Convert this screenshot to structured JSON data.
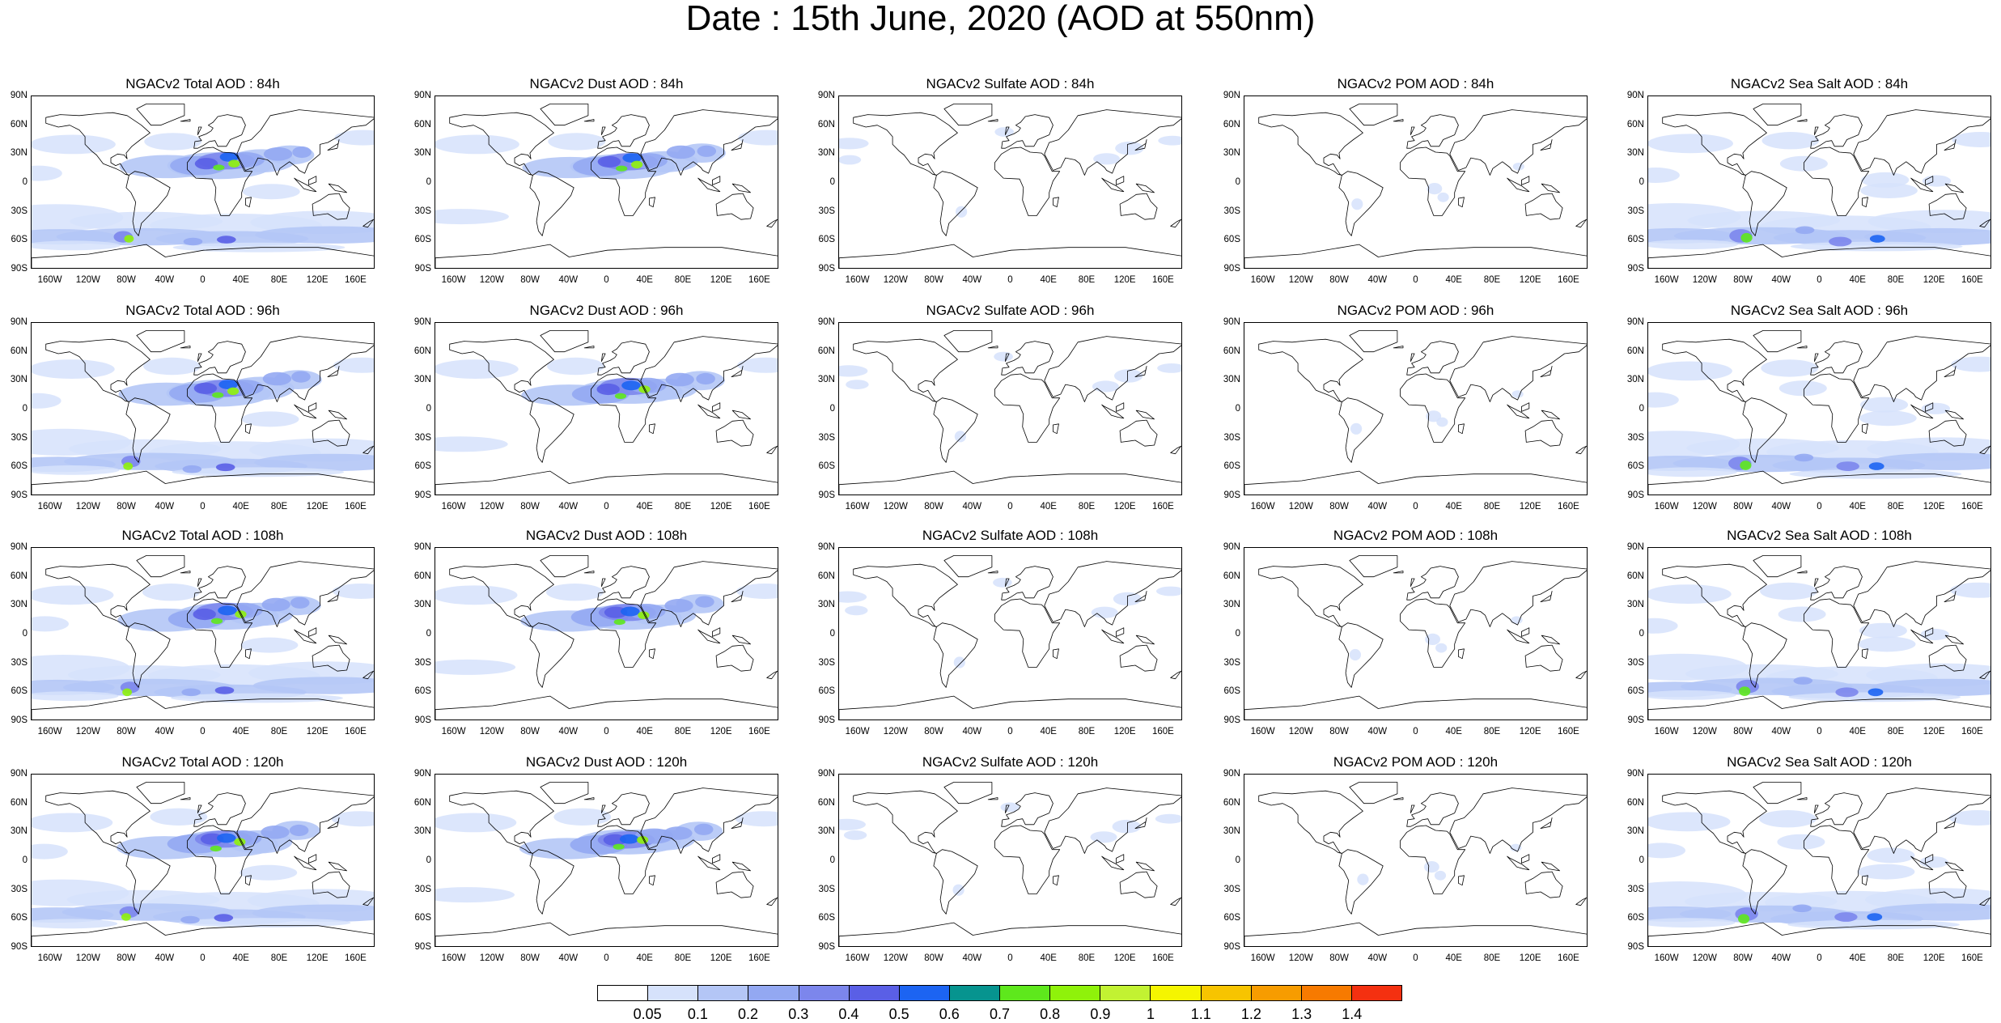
{
  "title": "Date : 15th June, 2020 (AOD at 550nm)",
  "lat_labels": [
    "90N",
    "60N",
    "30N",
    "0",
    "30S",
    "60S",
    "90S"
  ],
  "lon_labels": [
    "160W",
    "120W",
    "80W",
    "40W",
    "0",
    "40E",
    "80E",
    "120E",
    "160E"
  ],
  "rows": [
    {
      "panels": [
        {
          "title": "NGACv2 Total AOD : 84h",
          "kind": "total"
        },
        {
          "title": "NGACv2 Dust AOD : 84h",
          "kind": "dust"
        },
        {
          "title": "NGACv2 Sulfate AOD : 84h",
          "kind": "sulfate"
        },
        {
          "title": "NGACv2 POM AOD : 84h",
          "kind": "pom"
        },
        {
          "title": "NGACv2 Sea Salt AOD : 84h",
          "kind": "seasalt"
        }
      ]
    },
    {
      "panels": [
        {
          "title": "NGACv2 Total AOD : 96h",
          "kind": "total"
        },
        {
          "title": "NGACv2 Dust AOD : 96h",
          "kind": "dust"
        },
        {
          "title": "NGACv2 Sulfate AOD : 96h",
          "kind": "sulfate"
        },
        {
          "title": "NGACv2 POM AOD : 96h",
          "kind": "pom"
        },
        {
          "title": "NGACv2 Sea Salt AOD : 96h",
          "kind": "seasalt"
        }
      ]
    },
    {
      "panels": [
        {
          "title": "NGACv2 Total AOD : 108h",
          "kind": "total"
        },
        {
          "title": "NGACv2 Dust AOD : 108h",
          "kind": "dust"
        },
        {
          "title": "NGACv2 Sulfate AOD : 108h",
          "kind": "sulfate"
        },
        {
          "title": "NGACv2 POM AOD : 108h",
          "kind": "pom"
        },
        {
          "title": "NGACv2 Sea Salt AOD : 108h",
          "kind": "seasalt"
        }
      ]
    },
    {
      "panels": [
        {
          "title": "NGACv2 Total AOD : 120h",
          "kind": "total"
        },
        {
          "title": "NGACv2 Dust AOD : 120h",
          "kind": "dust"
        },
        {
          "title": "NGACv2 Sulfate AOD : 120h",
          "kind": "sulfate"
        },
        {
          "title": "NGACv2 POM AOD : 120h",
          "kind": "pom"
        },
        {
          "title": "NGACv2 Sea Salt  AOD : 120h",
          "kind": "seasalt"
        }
      ]
    }
  ],
  "colorbar": {
    "labels": [
      "0.05",
      "0.1",
      "0.2",
      "0.3",
      "0.4",
      "0.5",
      "0.6",
      "0.7",
      "0.8",
      "0.9",
      "1",
      "1.1",
      "1.2",
      "1.3",
      "1.4"
    ],
    "colors": [
      "#ffffff",
      "#d6e2fb",
      "#b4c6f6",
      "#93a8f2",
      "#7c86ec",
      "#5a5fe6",
      "#1c64f2",
      "#06948f",
      "#5ee81c",
      "#8ff20a",
      "#c2f232",
      "#f5f500",
      "#f7c400",
      "#f79c00",
      "#f77a00",
      "#f43010"
    ]
  }
}
